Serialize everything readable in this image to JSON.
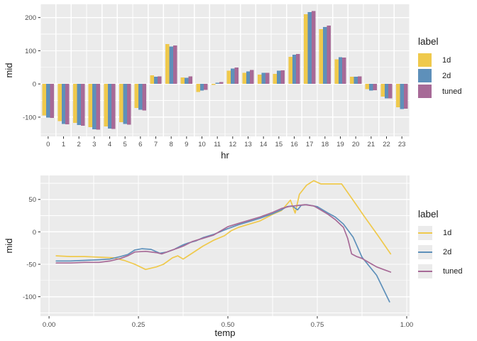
{
  "figure": {
    "bg": "#FFFFFF",
    "panel_bg": "#EBEBEB",
    "grid_color": "#FFFFFF",
    "tick_mark_color": "#333333",
    "tick_label_color": "#4D4D4D",
    "axis_title_color": "#1A1A1A"
  },
  "legend": {
    "title": "label",
    "entries": [
      {
        "label": "1d",
        "color": "#EFC94C"
      },
      {
        "label": "2d",
        "color": "#5E90BA"
      },
      {
        "label": "tuned",
        "color": "#A76A97"
      }
    ]
  },
  "chart_data": [
    {
      "type": "bar",
      "title": "",
      "xlabel": "hr",
      "ylabel": "mid",
      "legend_title": "label",
      "legend_position": "right",
      "grid": true,
      "categories": [
        "0",
        "1",
        "2",
        "3",
        "4",
        "5",
        "6",
        "7",
        "8",
        "9",
        "10",
        "11",
        "12",
        "13",
        "14",
        "15",
        "16",
        "17",
        "18",
        "19",
        "20",
        "21",
        "22",
        "23"
      ],
      "series": [
        {
          "name": "1d",
          "color": "#EFC94C",
          "values": [
            -95,
            -112,
            -117,
            -130,
            -128,
            -115,
            -72,
            26,
            120,
            20,
            -24,
            -3,
            40,
            33,
            28,
            30,
            82,
            210,
            165,
            74,
            22,
            -16,
            -38,
            -70
          ]
        },
        {
          "name": "2d",
          "color": "#5E90BA",
          "values": [
            -101,
            -121,
            -124,
            -137,
            -134,
            -121,
            -78,
            22,
            113,
            19,
            -20,
            4,
            46,
            38,
            33,
            40,
            88,
            216,
            172,
            81,
            22,
            -20,
            -44,
            -76
          ]
        },
        {
          "name": "tuned",
          "color": "#A76A97",
          "values": [
            -102,
            -122,
            -126,
            -138,
            -136,
            -123,
            -80,
            23,
            116,
            23,
            -18,
            6,
            50,
            42,
            33,
            41,
            90,
            220,
            176,
            79,
            23,
            -19,
            -44,
            -75
          ]
        }
      ],
      "ylim": [
        -158,
        240
      ],
      "yticks": [
        {
          "v": -100,
          "label": "-100"
        },
        {
          "v": 0,
          "label": "0"
        },
        {
          "v": 100,
          "label": "100"
        },
        {
          "v": 200,
          "label": "200"
        }
      ],
      "yticks_minor": [
        -150,
        -50,
        50,
        150
      ]
    },
    {
      "type": "line",
      "title": "",
      "xlabel": "temp",
      "ylabel": "mid",
      "legend_title": "label",
      "legend_position": "right",
      "grid": true,
      "xlim": [
        -0.024,
        1.008
      ],
      "ylim": [
        -130,
        87
      ],
      "xticks": [
        {
          "v": 0,
          "label": "0.00"
        },
        {
          "v": 0.25,
          "label": "0.25"
        },
        {
          "v": 0.5,
          "label": "0.50"
        },
        {
          "v": 0.75,
          "label": "0.75"
        },
        {
          "v": 1,
          "label": "1.00"
        }
      ],
      "xticks_minor": [
        0.125,
        0.375,
        0.625,
        0.875
      ],
      "yticks": [
        {
          "v": -100,
          "label": "-100"
        },
        {
          "v": -50,
          "label": "-50"
        },
        {
          "v": 0,
          "label": "0"
        },
        {
          "v": 50,
          "label": "50"
        }
      ],
      "yticks_minor": [
        -125,
        -75,
        -25,
        25,
        75
      ],
      "series": [
        {
          "name": "1d",
          "color": "#EFC94C",
          "points": [
            [
              0.02,
              -37
            ],
            [
              0.06,
              -38
            ],
            [
              0.1,
              -38
            ],
            [
              0.14,
              -39
            ],
            [
              0.18,
              -40
            ],
            [
              0.21,
              -44
            ],
            [
              0.24,
              -50
            ],
            [
              0.27,
              -58
            ],
            [
              0.3,
              -54
            ],
            [
              0.32,
              -50
            ],
            [
              0.345,
              -40
            ],
            [
              0.36,
              -37
            ],
            [
              0.375,
              -42
            ],
            [
              0.4,
              -33
            ],
            [
              0.43,
              -22
            ],
            [
              0.46,
              -13
            ],
            [
              0.49,
              -6
            ],
            [
              0.51,
              2
            ],
            [
              0.53,
              7
            ],
            [
              0.56,
              12
            ],
            [
              0.59,
              17
            ],
            [
              0.625,
              27
            ],
            [
              0.65,
              33
            ],
            [
              0.675,
              49
            ],
            [
              0.688,
              29
            ],
            [
              0.7,
              58
            ],
            [
              0.72,
              72
            ],
            [
              0.74,
              79
            ],
            [
              0.76,
              74
            ],
            [
              0.818,
              74
            ],
            [
              0.85,
              49
            ],
            [
              0.88,
              25
            ],
            [
              0.92,
              -6
            ],
            [
              0.955,
              -34
            ]
          ]
        },
        {
          "name": "2d",
          "color": "#5E90BA",
          "points": [
            [
              0.02,
              -45
            ],
            [
              0.06,
              -45
            ],
            [
              0.1,
              -44
            ],
            [
              0.14,
              -43
            ],
            [
              0.17,
              -42
            ],
            [
              0.2,
              -38
            ],
            [
              0.22,
              -35
            ],
            [
              0.24,
              -28
            ],
            [
              0.26,
              -26
            ],
            [
              0.285,
              -27
            ],
            [
              0.31,
              -33
            ],
            [
              0.33,
              -31
            ],
            [
              0.35,
              -27
            ],
            [
              0.375,
              -20
            ],
            [
              0.39,
              -17
            ],
            [
              0.41,
              -14
            ],
            [
              0.43,
              -9
            ],
            [
              0.46,
              -4
            ],
            [
              0.5,
              5
            ],
            [
              0.53,
              11
            ],
            [
              0.56,
              16
            ],
            [
              0.59,
              21
            ],
            [
              0.625,
              28
            ],
            [
              0.65,
              34
            ],
            [
              0.665,
              39
            ],
            [
              0.68,
              40
            ],
            [
              0.695,
              34
            ],
            [
              0.705,
              41
            ],
            [
              0.72,
              42
            ],
            [
              0.74,
              40
            ],
            [
              0.75,
              39
            ],
            [
              0.78,
              29
            ],
            [
              0.8,
              23
            ],
            [
              0.823,
              12
            ],
            [
              0.85,
              -8
            ],
            [
              0.875,
              -39
            ],
            [
              0.916,
              -67
            ],
            [
              0.952,
              -108
            ]
          ]
        },
        {
          "name": "tuned",
          "color": "#A76A97",
          "points": [
            [
              0.02,
              -48
            ],
            [
              0.06,
              -48
            ],
            [
              0.1,
              -47
            ],
            [
              0.14,
              -47
            ],
            [
              0.17,
              -45
            ],
            [
              0.2,
              -41
            ],
            [
              0.22,
              -37
            ],
            [
              0.24,
              -31
            ],
            [
              0.27,
              -30
            ],
            [
              0.3,
              -32
            ],
            [
              0.315,
              -34
            ],
            [
              0.34,
              -29
            ],
            [
              0.36,
              -25
            ],
            [
              0.375,
              -22
            ],
            [
              0.4,
              -15
            ],
            [
              0.43,
              -10
            ],
            [
              0.46,
              -5
            ],
            [
              0.5,
              8
            ],
            [
              0.53,
              13
            ],
            [
              0.56,
              18
            ],
            [
              0.59,
              23
            ],
            [
              0.625,
              30
            ],
            [
              0.65,
              36
            ],
            [
              0.67,
              39
            ],
            [
              0.7,
              41
            ],
            [
              0.715,
              42
            ],
            [
              0.74,
              40
            ],
            [
              0.75,
              37
            ],
            [
              0.78,
              27
            ],
            [
              0.8,
              19
            ],
            [
              0.823,
              7
            ],
            [
              0.835,
              -10
            ],
            [
              0.846,
              -34
            ],
            [
              0.86,
              -38
            ],
            [
              0.875,
              -41
            ],
            [
              0.9,
              -49
            ],
            [
              0.916,
              -54
            ],
            [
              0.935,
              -58
            ],
            [
              0.955,
              -62
            ]
          ]
        }
      ]
    }
  ]
}
